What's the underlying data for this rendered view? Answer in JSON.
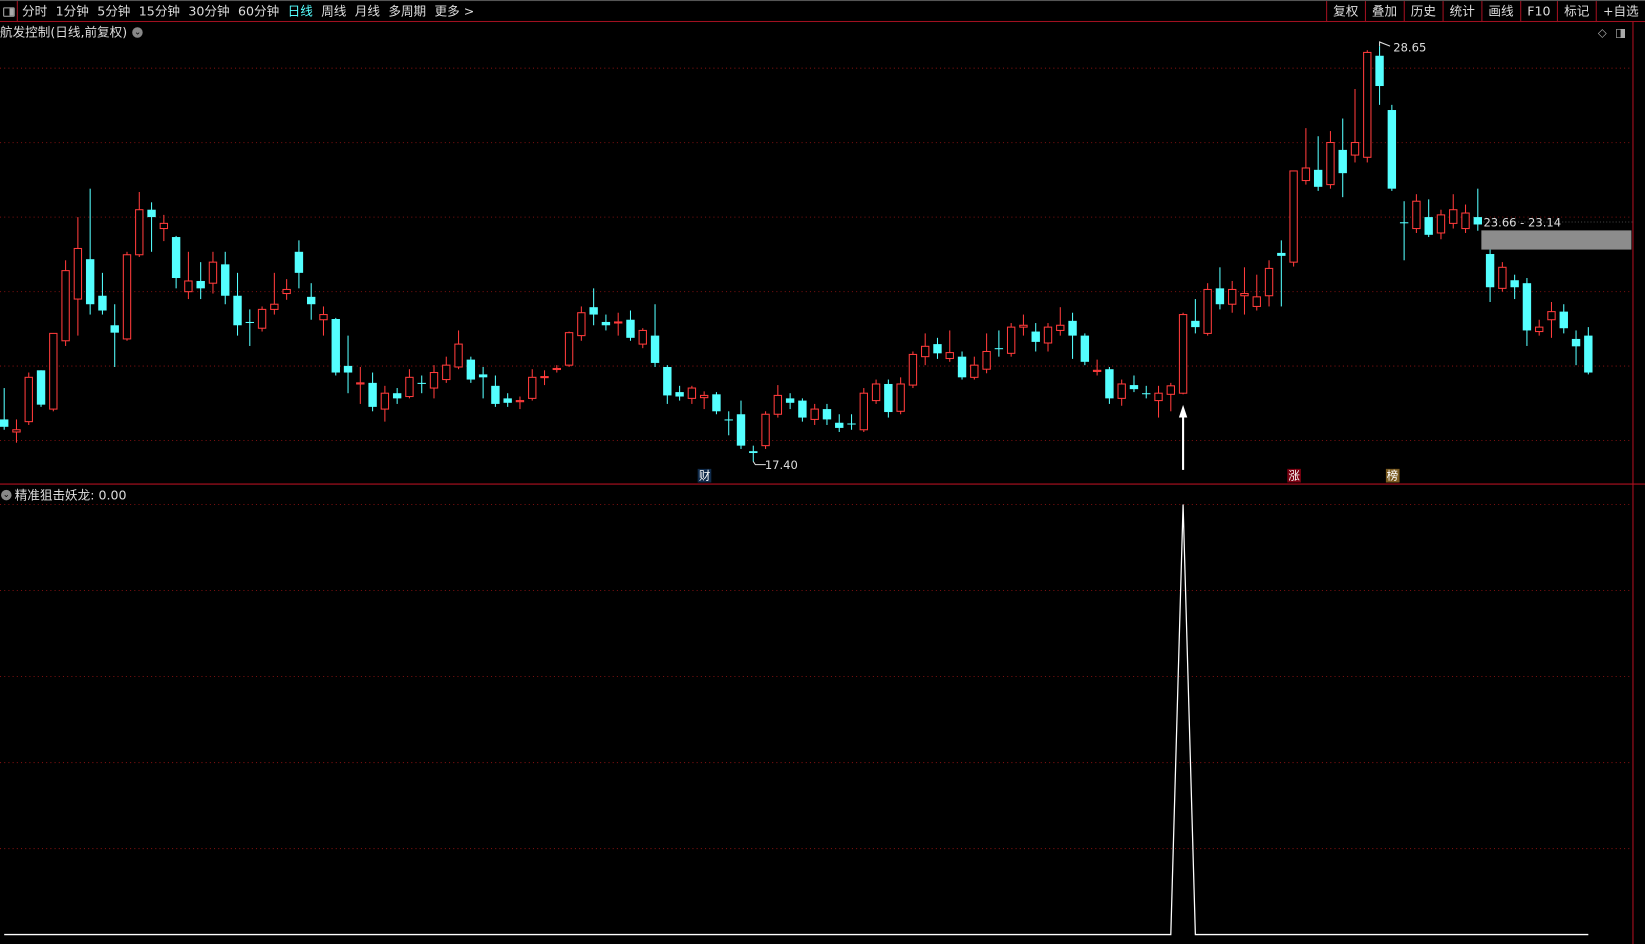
{
  "toolbar": {
    "periods": [
      "分时",
      "1分钟",
      "5分钟",
      "15分钟",
      "30分钟",
      "60分钟",
      "日线",
      "周线",
      "月线",
      "多周期",
      "更多 >"
    ],
    "active_period": "日线",
    "right": [
      "复权",
      "叠加",
      "历史",
      "统计",
      "画线",
      "F10",
      "标记",
      "+自选"
    ]
  },
  "main_title": "航发控制(日线,前复权)",
  "labels": {
    "high": "28.65",
    "low": "17.40",
    "range_band": "23.66 - 23.14"
  },
  "tags": {
    "cai": "财",
    "zhang": "涨",
    "bang": "榜"
  },
  "indicator": {
    "name": "精准狙击妖龙",
    "value": ": 0.00"
  },
  "colors": {
    "up": "#ff3b3b",
    "down": "#54ffff",
    "grid": "#7a1010",
    "axis": "#b01020",
    "band": "#8c8c8c",
    "tag_cai": "#0f2a4a",
    "tag_zhang": "#7a0010",
    "tag_bang": "#7a5a20"
  },
  "chart_data": {
    "type": "candlestick",
    "ohlc": [
      [
        18.54,
        19.39,
        18.26,
        18.34
      ],
      [
        18.2,
        18.54,
        17.91,
        18.26
      ],
      [
        18.48,
        19.81,
        18.39,
        19.68
      ],
      [
        19.87,
        19.87,
        18.88,
        18.94
      ],
      [
        18.82,
        20.87,
        18.76,
        20.87
      ],
      [
        20.67,
        22.85,
        20.53,
        22.57
      ],
      [
        21.8,
        24.02,
        20.81,
        23.17
      ],
      [
        22.88,
        24.79,
        21.38,
        21.66
      ],
      [
        21.89,
        22.51,
        21.38,
        21.49
      ],
      [
        21.09,
        21.66,
        19.96,
        20.89
      ],
      [
        20.72,
        23.08,
        20.67,
        23.0
      ],
      [
        23.0,
        24.7,
        22.94,
        24.22
      ],
      [
        24.22,
        24.42,
        23.08,
        24.02
      ],
      [
        23.71,
        24.08,
        23.37,
        23.85
      ],
      [
        23.48,
        23.51,
        22.09,
        22.37
      ],
      [
        22.0,
        23.08,
        21.8,
        22.29
      ],
      [
        22.29,
        22.8,
        21.8,
        22.09
      ],
      [
        22.23,
        23.08,
        21.95,
        22.8
      ],
      [
        22.74,
        23.08,
        21.66,
        21.89
      ],
      [
        21.89,
        22.51,
        20.81,
        21.09
      ],
      [
        21.18,
        21.52,
        20.53,
        21.16
      ],
      [
        21.01,
        21.6,
        20.92,
        21.52
      ],
      [
        21.52,
        22.51,
        21.38,
        21.66
      ],
      [
        21.95,
        22.34,
        21.78,
        22.06
      ],
      [
        23.08,
        23.39,
        22.09,
        22.51
      ],
      [
        21.86,
        22.23,
        21.24,
        21.66
      ],
      [
        21.24,
        21.6,
        20.81,
        21.38
      ],
      [
        21.26,
        21.29,
        19.73,
        19.81
      ],
      [
        19.99,
        20.81,
        19.25,
        19.81
      ],
      [
        19.5,
        19.96,
        18.96,
        19.53
      ],
      [
        19.53,
        19.81,
        18.76,
        18.88
      ],
      [
        18.82,
        19.45,
        18.48,
        19.25
      ],
      [
        19.25,
        19.39,
        18.96,
        19.11
      ],
      [
        19.16,
        19.9,
        19.11,
        19.68
      ],
      [
        19.53,
        19.73,
        19.25,
        19.51
      ],
      [
        19.39,
        20.01,
        19.11,
        19.81
      ],
      [
        19.62,
        20.24,
        19.53,
        20.01
      ],
      [
        19.96,
        20.95,
        19.9,
        20.58
      ],
      [
        20.16,
        20.24,
        19.53,
        19.62
      ],
      [
        19.76,
        19.96,
        19.11,
        19.68
      ],
      [
        19.45,
        19.73,
        18.88,
        18.96
      ],
      [
        19.11,
        19.25,
        18.88,
        18.99
      ],
      [
        19.02,
        19.16,
        18.82,
        19.05
      ],
      [
        19.11,
        19.9,
        19.05,
        19.68
      ],
      [
        19.68,
        19.87,
        19.47,
        19.7
      ],
      [
        19.9,
        20.01,
        19.81,
        19.92
      ],
      [
        20.01,
        20.92,
        19.96,
        20.89
      ],
      [
        20.81,
        21.6,
        20.67,
        21.43
      ],
      [
        21.58,
        22.09,
        21.09,
        21.38
      ],
      [
        21.18,
        21.38,
        20.95,
        21.09
      ],
      [
        21.16,
        21.43,
        20.81,
        21.18
      ],
      [
        21.24,
        21.49,
        20.67,
        20.75
      ],
      [
        20.58,
        21.01,
        20.47,
        20.95
      ],
      [
        20.81,
        21.66,
        19.96,
        20.07
      ],
      [
        19.96,
        20.01,
        18.96,
        19.19
      ],
      [
        19.28,
        19.45,
        19.05,
        19.16
      ],
      [
        19.11,
        19.45,
        18.96,
        19.39
      ],
      [
        19.13,
        19.3,
        18.82,
        19.19
      ],
      [
        19.22,
        19.28,
        18.68,
        18.76
      ],
      [
        18.54,
        18.76,
        18.11,
        18.52
      ],
      [
        18.68,
        19.05,
        17.74,
        17.83
      ],
      [
        17.68,
        17.83,
        17.4,
        17.63
      ],
      [
        17.83,
        18.76,
        17.74,
        18.68
      ],
      [
        18.68,
        19.47,
        18.59,
        19.19
      ],
      [
        19.11,
        19.25,
        18.82,
        18.99
      ],
      [
        19.05,
        19.11,
        18.48,
        18.59
      ],
      [
        18.54,
        18.96,
        18.39,
        18.82
      ],
      [
        18.82,
        18.96,
        18.39,
        18.54
      ],
      [
        18.45,
        18.68,
        18.2,
        18.31
      ],
      [
        18.43,
        18.68,
        18.26,
        18.41
      ],
      [
        18.26,
        19.39,
        18.2,
        19.25
      ],
      [
        19.05,
        19.62,
        18.96,
        19.5
      ],
      [
        19.5,
        19.62,
        18.59,
        18.74
      ],
      [
        18.76,
        19.68,
        18.68,
        19.5
      ],
      [
        19.47,
        20.38,
        19.39,
        20.3
      ],
      [
        20.24,
        20.87,
        20.01,
        20.52
      ],
      [
        20.58,
        20.75,
        20.18,
        20.33
      ],
      [
        20.19,
        20.95,
        20.1,
        20.35
      ],
      [
        20.24,
        20.38,
        19.62,
        19.68
      ],
      [
        19.68,
        20.24,
        19.62,
        20.01
      ],
      [
        19.9,
        20.87,
        19.79,
        20.38
      ],
      [
        20.47,
        20.95,
        20.24,
        20.45
      ],
      [
        20.33,
        21.15,
        20.24,
        21.04
      ],
      [
        21.04,
        21.38,
        20.81,
        21.09
      ],
      [
        20.92,
        21.15,
        20.38,
        20.64
      ],
      [
        20.61,
        21.15,
        20.38,
        21.04
      ],
      [
        20.95,
        21.58,
        20.81,
        21.09
      ],
      [
        21.21,
        21.43,
        20.18,
        20.81
      ],
      [
        20.81,
        20.87,
        20.01,
        20.1
      ],
      [
        19.84,
        20.16,
        19.73,
        19.87
      ],
      [
        19.9,
        19.96,
        18.96,
        19.11
      ],
      [
        19.11,
        19.62,
        18.91,
        19.5
      ],
      [
        19.47,
        19.73,
        19.28,
        19.36
      ],
      [
        19.25,
        19.45,
        19.11,
        19.23
      ],
      [
        19.05,
        19.45,
        18.59,
        19.25
      ],
      [
        19.22,
        19.53,
        18.76,
        19.45
      ],
      [
        19.25,
        21.43,
        19.22,
        21.38
      ],
      [
        21.21,
        21.8,
        20.87,
        21.04
      ],
      [
        20.87,
        22.23,
        20.81,
        22.06
      ],
      [
        22.09,
        22.66,
        21.52,
        21.66
      ],
      [
        21.66,
        22.29,
        21.43,
        22.06
      ],
      [
        21.89,
        22.66,
        21.38,
        21.95
      ],
      [
        21.6,
        22.46,
        21.49,
        21.86
      ],
      [
        21.89,
        22.85,
        21.6,
        22.63
      ],
      [
        23.05,
        23.39,
        21.6,
        22.97
      ],
      [
        22.8,
        25.27,
        22.68,
        25.27
      ],
      [
        25.01,
        26.43,
        24.9,
        25.35
      ],
      [
        25.3,
        26.21,
        24.73,
        24.84
      ],
      [
        24.9,
        26.35,
        24.79,
        26.04
      ],
      [
        25.84,
        26.69,
        24.56,
        25.21
      ],
      [
        25.7,
        27.49,
        25.5,
        26.04
      ],
      [
        25.64,
        28.54,
        25.5,
        28.48
      ],
      [
        28.39,
        28.65,
        27.06,
        27.57
      ],
      [
        26.92,
        27.06,
        24.73,
        24.79
      ],
      [
        23.88,
        24.45,
        22.85,
        23.86
      ],
      [
        23.71,
        24.64,
        23.59,
        24.45
      ],
      [
        24.02,
        24.5,
        23.48,
        23.54
      ],
      [
        23.59,
        24.22,
        23.42,
        24.08
      ],
      [
        23.85,
        24.64,
        23.71,
        24.22
      ],
      [
        23.71,
        24.36,
        23.59,
        24.13
      ],
      [
        24.02,
        24.79,
        23.65,
        23.82
      ],
      [
        23.02,
        23.14,
        21.72,
        22.12
      ],
      [
        22.09,
        22.8,
        22.0,
        22.66
      ],
      [
        22.31,
        22.46,
        21.8,
        22.12
      ],
      [
        22.23,
        22.37,
        20.53,
        20.95
      ],
      [
        20.92,
        21.24,
        20.81,
        21.04
      ],
      [
        21.24,
        21.72,
        20.75,
        21.46
      ],
      [
        21.46,
        21.66,
        20.87,
        21.01
      ],
      [
        20.72,
        20.95,
        20.01,
        20.52
      ],
      [
        20.81,
        21.04,
        19.76,
        19.81
      ]
    ],
    "high_point": 28.65,
    "low_point": 17.4,
    "range_band": [
      23.14,
      23.66
    ],
    "signal_index": 96,
    "tag_indices": {
      "cai": 57,
      "zhang": 105,
      "bang": 113
    },
    "indicator_values_nonzero": {
      "96": 1
    },
    "indicator_range": [
      0,
      1
    ]
  }
}
